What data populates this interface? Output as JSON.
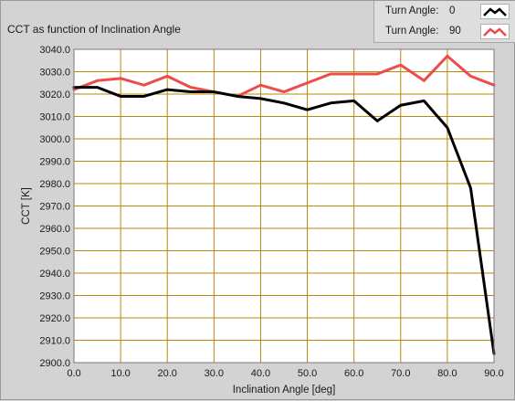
{
  "chart_data": {
    "type": "line",
    "title": "CCT as function of Inclination Angle",
    "xlabel": "Inclination Angle [deg]",
    "ylabel": "CCT [K]",
    "xlim": [
      0,
      90
    ],
    "ylim": [
      2900,
      3040
    ],
    "x_ticks": [
      "0.0",
      "10.0",
      "20.0",
      "30.0",
      "40.0",
      "50.0",
      "60.0",
      "70.0",
      "80.0",
      "90.0"
    ],
    "y_ticks": [
      "2900.0",
      "2910.0",
      "2920.0",
      "2930.0",
      "2940.0",
      "2950.0",
      "2960.0",
      "2970.0",
      "2980.0",
      "2990.0",
      "3000.0",
      "3010.0",
      "3020.0",
      "3030.0",
      "3040.0"
    ],
    "grid": true,
    "legend_position": "top-right",
    "x": [
      0,
      5,
      10,
      15,
      20,
      25,
      30,
      35,
      40,
      45,
      50,
      55,
      60,
      65,
      70,
      75,
      80,
      85,
      90
    ],
    "series": [
      {
        "name": "Turn Angle:",
        "turn_angle": "0",
        "color": "#000000",
        "values": [
          3023,
          3023,
          3019,
          3019,
          3022,
          3021,
          3021,
          3019,
          3018,
          3016,
          3013,
          3016,
          3017,
          3008,
          3015,
          3017,
          3005,
          2978,
          2904
        ]
      },
      {
        "name": "Turn Angle:",
        "turn_angle": "90",
        "color": "#ee4b4b",
        "values": [
          3022,
          3026,
          3027,
          3024,
          3028,
          3023,
          3021,
          3019,
          3024,
          3021,
          3025,
          3029,
          3029,
          3029,
          3033,
          3026,
          3037,
          3028,
          3024
        ]
      }
    ]
  },
  "colors": {
    "plot_background": "#ffffff",
    "grid": "#b8860b",
    "panel_background": "#d3d3d3"
  }
}
